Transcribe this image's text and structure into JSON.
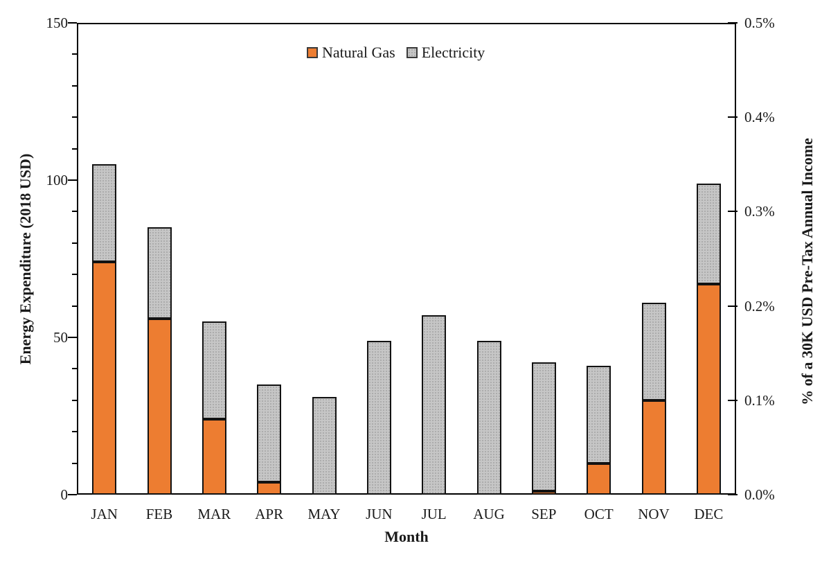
{
  "chart_data": {
    "type": "bar",
    "stacked": true,
    "title": "",
    "xlabel": "Month",
    "ylabel_left": "Energy Expenditure (2018 USD)",
    "ylabel_right": "% of a 30K USD Pre-Tax Annual Income",
    "categories": [
      "JAN",
      "FEB",
      "MAR",
      "APR",
      "MAY",
      "JUN",
      "JUL",
      "AUG",
      "SEP",
      "OCT",
      "NOV",
      "DEC"
    ],
    "series": [
      {
        "name": "Natural Gas",
        "color": "#ED7D31",
        "values": [
          74,
          56,
          24,
          4,
          0,
          0,
          0,
          0,
          1,
          10,
          30,
          67
        ]
      },
      {
        "name": "Electricity",
        "color": "#C6C6C6",
        "values": [
          31,
          29,
          31,
          31,
          31,
          49,
          57,
          49,
          41,
          31,
          31,
          32
        ]
      }
    ],
    "totals": [
      105,
      85,
      55,
      35,
      31,
      49,
      57,
      49,
      42,
      41,
      61,
      99
    ],
    "ylim_left": [
      0,
      150
    ],
    "left_axis_major_ticks": [
      0,
      50,
      100,
      150
    ],
    "left_axis_minor_step": 10,
    "right_axis_tick_labels": [
      "0.0%",
      "0.1%",
      "0.2%",
      "0.3%",
      "0.4%",
      "0.5%"
    ],
    "grid": false,
    "legend_position": "top-center",
    "axis_color": "#000000",
    "background_color": "#FFFFFF"
  },
  "legend": {
    "items": [
      {
        "label": "Natural Gas"
      },
      {
        "label": "Electricity"
      }
    ]
  }
}
